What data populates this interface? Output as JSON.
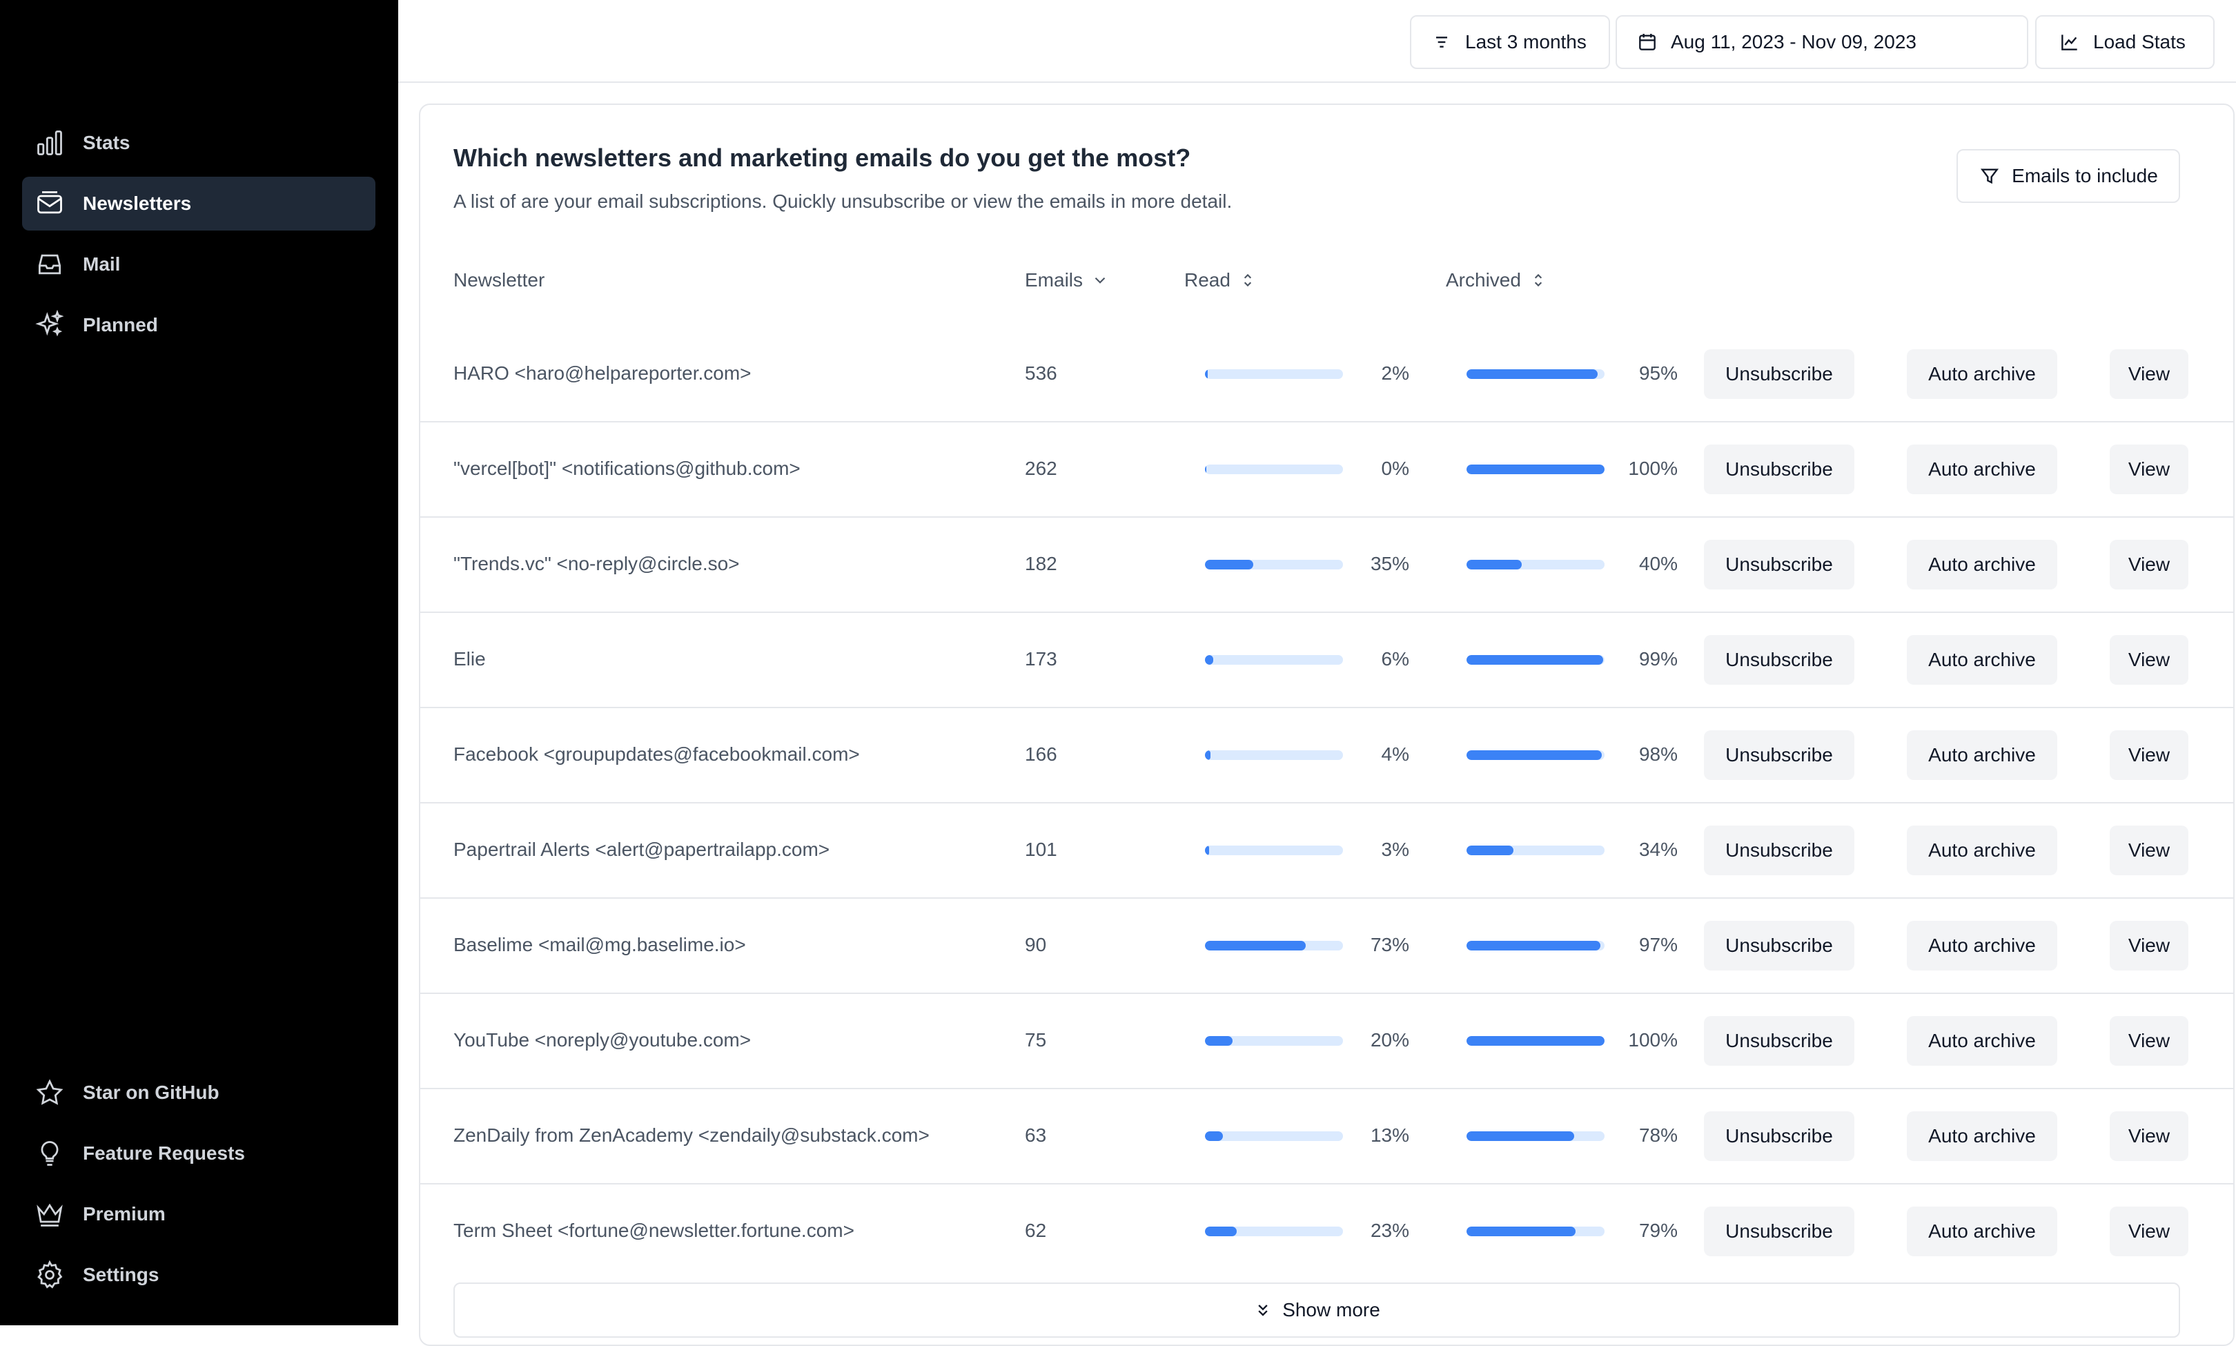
{
  "sidebar": {
    "top_items": [
      {
        "label": "Stats",
        "icon": "bar-chart-icon"
      },
      {
        "label": "Newsletters",
        "icon": "mail-icon",
        "active": true
      },
      {
        "label": "Mail",
        "icon": "inbox-icon"
      },
      {
        "label": "Planned",
        "icon": "sparkles-icon"
      }
    ],
    "bottom_items": [
      {
        "label": "Star on GitHub",
        "icon": "star-icon"
      },
      {
        "label": "Feature Requests",
        "icon": "lightbulb-icon"
      },
      {
        "label": "Premium",
        "icon": "crown-icon"
      },
      {
        "label": "Settings",
        "icon": "gear-icon"
      }
    ]
  },
  "topbar": {
    "period_label": "Last 3 months",
    "date_range": "Aug 11, 2023 - Nov 09, 2023",
    "load_stats_label": "Load Stats"
  },
  "card": {
    "title": "Which newsletters and marketing emails do you get the most?",
    "description": "A list of are your email subscriptions. Quickly unsubscribe or view the emails in more detail.",
    "filter_label": "Emails to include"
  },
  "table": {
    "headers": {
      "newsletter": "Newsletter",
      "emails": "Emails",
      "read": "Read",
      "archived": "Archived"
    },
    "actions": {
      "unsubscribe": "Unsubscribe",
      "auto_archive": "Auto archive",
      "view": "View"
    },
    "rows": [
      {
        "name": "HARO <haro@helpareporter.com>",
        "emails": "536",
        "read": 2,
        "read_label": "2%",
        "archived": 95,
        "archived_label": "95%"
      },
      {
        "name": "\"vercel[bot]\" <notifications@github.com>",
        "emails": "262",
        "read": 0,
        "read_label": "0%",
        "archived": 100,
        "archived_label": "100%"
      },
      {
        "name": "\"Trends.vc\" <no-reply@circle.so>",
        "emails": "182",
        "read": 35,
        "read_label": "35%",
        "archived": 40,
        "archived_label": "40%"
      },
      {
        "name": "Elie",
        "emails": "173",
        "read": 6,
        "read_label": "6%",
        "archived": 99,
        "archived_label": "99%"
      },
      {
        "name": "Facebook <groupupdates@facebookmail.com>",
        "emails": "166",
        "read": 4,
        "read_label": "4%",
        "archived": 98,
        "archived_label": "98%"
      },
      {
        "name": "Papertrail Alerts <alert@papertrailapp.com>",
        "emails": "101",
        "read": 3,
        "read_label": "3%",
        "archived": 34,
        "archived_label": "34%"
      },
      {
        "name": "Baselime <mail@mg.baselime.io>",
        "emails": "90",
        "read": 73,
        "read_label": "73%",
        "archived": 97,
        "archived_label": "97%"
      },
      {
        "name": "YouTube <noreply@youtube.com>",
        "emails": "75",
        "read": 20,
        "read_label": "20%",
        "archived": 100,
        "archived_label": "100%"
      },
      {
        "name": "ZenDaily from ZenAcademy <zendaily@substack.com>",
        "emails": "63",
        "read": 13,
        "read_label": "13%",
        "archived": 78,
        "archived_label": "78%"
      },
      {
        "name": "Term Sheet <fortune@newsletter.fortune.com>",
        "emails": "62",
        "read": 23,
        "read_label": "23%",
        "archived": 79,
        "archived_label": "79%"
      }
    ],
    "show_more_label": "Show more"
  },
  "colors": {
    "accent": "#3b82f6",
    "bar_track": "#dbeafe",
    "sidebar_bg": "#000000",
    "active_item_bg": "#1f2937"
  }
}
